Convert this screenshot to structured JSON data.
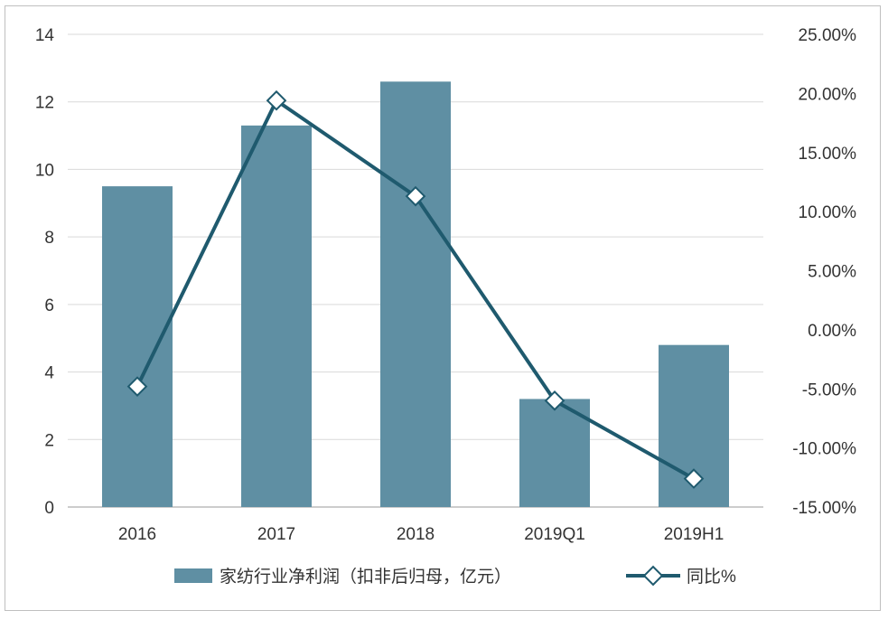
{
  "chart_data": {
    "type": "bar",
    "title": "",
    "categories": [
      "2016",
      "2017",
      "2018",
      "2019Q1",
      "2019H1"
    ],
    "series": [
      {
        "name": "家纺行业净利润（扣非后归母，亿元）",
        "type": "bar",
        "axis": "left",
        "color": "#5f8fa3",
        "values": [
          9.5,
          11.3,
          12.6,
          3.2,
          4.8
        ]
      },
      {
        "name": "同比%",
        "type": "line",
        "axis": "right",
        "color": "#1f5a6e",
        "marker": "diamond",
        "values": [
          -4.8,
          19.4,
          11.3,
          -6.0,
          -12.6
        ]
      }
    ],
    "left_axis": {
      "ylim": [
        0,
        14
      ],
      "ticks": [
        "0",
        "2",
        "4",
        "6",
        "8",
        "10",
        "12",
        "14"
      ]
    },
    "right_axis": {
      "ylim": [
        -15,
        25
      ],
      "ticks": [
        "-15.00%",
        "-10.00%",
        "-5.00%",
        "0.00%",
        "5.00%",
        "10.00%",
        "15.00%",
        "20.00%",
        "25.00%"
      ]
    },
    "grid": true,
    "legend": "bottom"
  }
}
